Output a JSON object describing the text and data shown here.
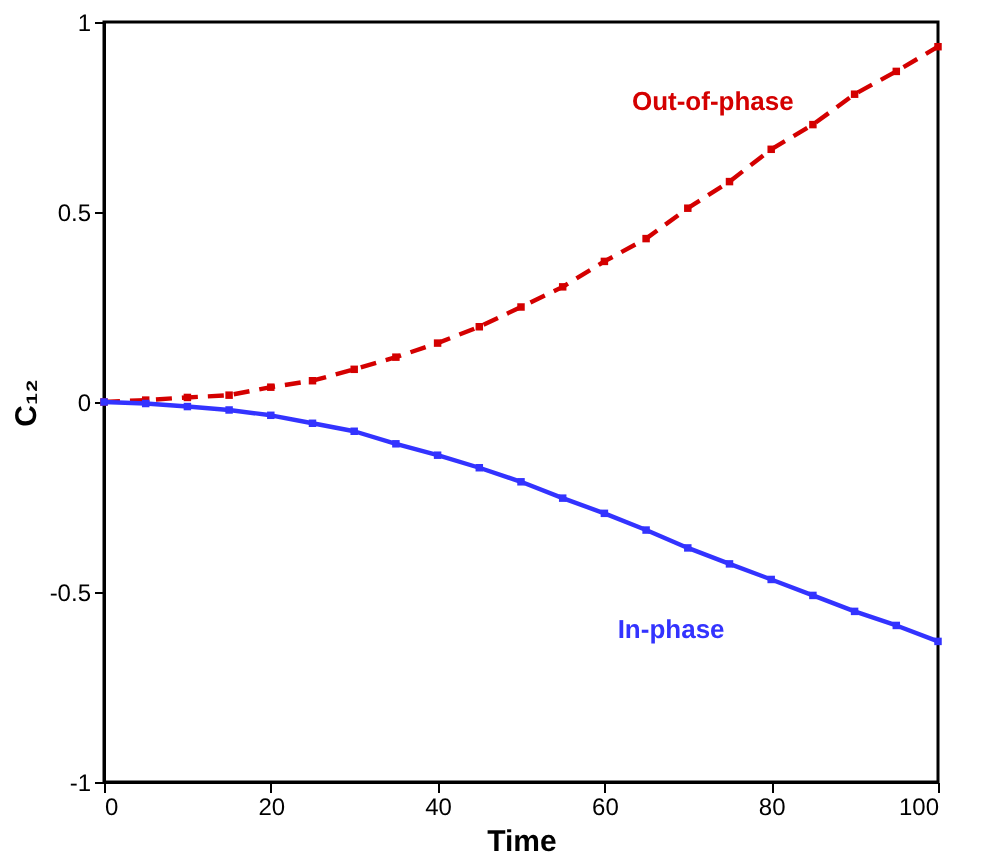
{
  "chart_data": {
    "type": "line",
    "xlabel": "Time",
    "ylabel": "C₁₂",
    "x": [
      0,
      5,
      10,
      15,
      20,
      25,
      30,
      35,
      40,
      45,
      50,
      55,
      60,
      65,
      70,
      75,
      80,
      85,
      90,
      95,
      100
    ],
    "series": [
      {
        "name": "Out-of-phase",
        "color": "#d40000",
        "line_style": "dashed",
        "values": [
          0,
          0.005,
          0.012,
          0.018,
          0.039,
          0.056,
          0.086,
          0.118,
          0.155,
          0.198,
          0.25,
          0.303,
          0.37,
          0.43,
          0.51,
          0.58,
          0.665,
          0.73,
          0.81,
          0.87,
          0.935
        ]
      },
      {
        "name": "In-phase",
        "color": "#3333ff",
        "line_style": "solid",
        "values": [
          0,
          -0.004,
          -0.012,
          -0.021,
          -0.035,
          -0.056,
          -0.077,
          -0.11,
          -0.14,
          -0.173,
          -0.21,
          -0.253,
          -0.293,
          -0.337,
          -0.384,
          -0.426,
          -0.467,
          -0.509,
          -0.551,
          -0.588,
          -0.63
        ]
      }
    ],
    "xlim": [
      0,
      100
    ],
    "xticks": [
      0,
      20,
      40,
      60,
      80,
      100
    ],
    "ylim": [
      -1,
      1
    ],
    "yticks": [
      -1,
      -0.5,
      0,
      0.5,
      1
    ],
    "marker": "square",
    "grid": false
  }
}
